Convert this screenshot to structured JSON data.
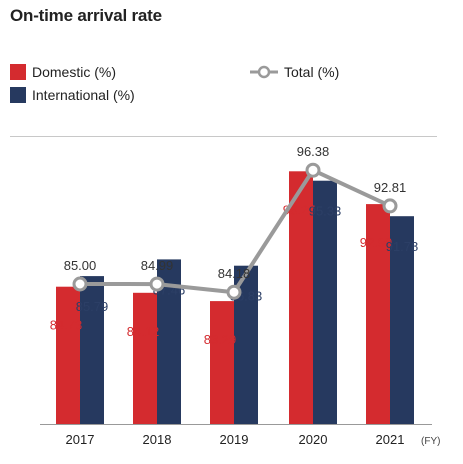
{
  "title": "On-time arrival rate",
  "legend": {
    "domestic": "Domestic (%)",
    "international": "International (%)",
    "total": "Total (%)"
  },
  "colors": {
    "domestic": "#d42b2f",
    "international": "#26395f",
    "total": "#9a9a9a",
    "domestic_label": "#d42b2f",
    "international_label": "#2c3f66"
  },
  "chart_data": {
    "type": "bar",
    "categories": [
      "2017",
      "2018",
      "2019",
      "2020",
      "2021"
    ],
    "x_unit": "(FY)",
    "series": [
      {
        "name": "Domestic (%)",
        "type": "bar",
        "values": [
          84.73,
          84.12,
          83.29,
          96.27,
          92.99
        ]
      },
      {
        "name": "International (%)",
        "type": "bar",
        "values": [
          85.79,
          87.46,
          86.83,
          95.33,
          91.78
        ]
      },
      {
        "name": "Total (%)",
        "type": "line",
        "values": [
          85.0,
          84.99,
          84.18,
          96.38,
          92.81
        ]
      }
    ],
    "value_labels": {
      "domestic": [
        "84.73",
        "84.12",
        "83.29",
        "96.27",
        "92.99"
      ],
      "international": [
        "85.79",
        "87.46",
        "86.83",
        "95.33",
        "91.78"
      ],
      "total": [
        "85.00",
        "84.99",
        "84.18",
        "96.38",
        "92.81"
      ]
    },
    "y_axis_visible": false,
    "grid": false,
    "legend_position": "top-left"
  }
}
